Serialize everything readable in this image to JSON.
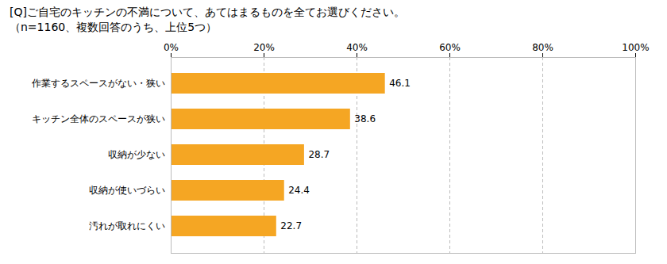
{
  "chart_data": {
    "type": "bar",
    "orientation": "horizontal",
    "title": "[Q]ご自宅のキッチンの不満について、あてはまるものを全てお選びください。",
    "subtitle": "（n=1160、複数回答のうち、上位5つ）",
    "categories": [
      "作業するスペースがない・狭い",
      "キッチン全体のスペースが狭い",
      "収納が少ない",
      "収納が使いづらい",
      "汚れが取れにくい"
    ],
    "values": [
      46.1,
      38.6,
      28.7,
      24.4,
      22.7
    ],
    "color": "#F5A623",
    "xlim": [
      0,
      100
    ],
    "xticks": [
      {
        "value": 0,
        "label": "0%"
      },
      {
        "value": 20,
        "label": "20%"
      },
      {
        "value": 40,
        "label": "40%"
      },
      {
        "value": 60,
        "label": "60%"
      },
      {
        "value": 80,
        "label": "80%"
      },
      {
        "value": 100,
        "label": "100%"
      }
    ],
    "grid": true,
    "data_labels": true
  }
}
